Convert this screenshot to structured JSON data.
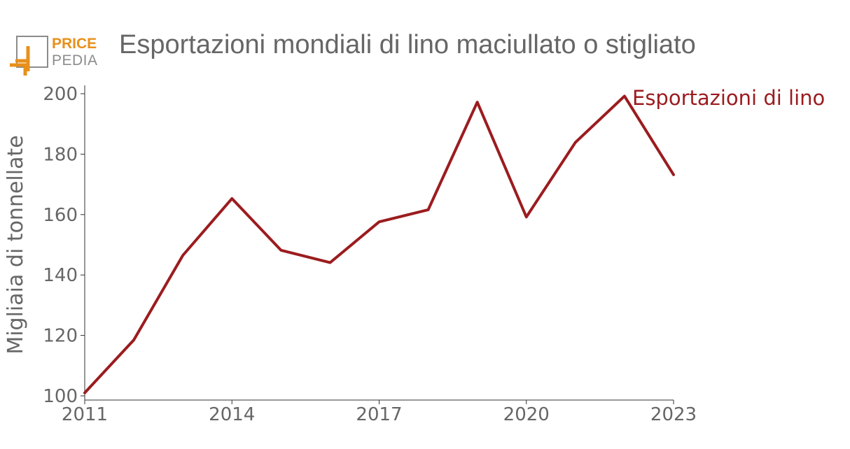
{
  "logo": {
    "line1": "PRICE",
    "line2": "PEDIA"
  },
  "colors": {
    "series": "#9b1c1f",
    "title": "#666666",
    "axis_text": "#666666",
    "logo_orange": "#e8901a",
    "logo_gray": "#8c8c8c"
  },
  "chart_data": {
    "type": "line",
    "title": "Esportazioni mondiali di lino maciullato o stigliato",
    "xlabel": "",
    "ylabel": "Migliaia di tonnellate",
    "x": [
      2011,
      2012,
      2013,
      2014,
      2015,
      2016,
      2017,
      2018,
      2019,
      2020,
      2021,
      2022,
      2023
    ],
    "series": [
      {
        "name": "Esportazioni di lino",
        "values": [
          101,
          118.5,
          146.5,
          165.3,
          148.2,
          144.1,
          157.6,
          161.6,
          197.2,
          159.2,
          183.9,
          199.2,
          173.2
        ]
      }
    ],
    "xlim": [
      2011,
      2023
    ],
    "ylim": [
      100,
      200
    ],
    "xticks": [
      "2011",
      "2014",
      "2017",
      "2020",
      "2023"
    ],
    "yticks": [
      "100",
      "120",
      "140",
      "160",
      "180",
      "200"
    ],
    "grid": false,
    "legend": "end-of-line label"
  }
}
